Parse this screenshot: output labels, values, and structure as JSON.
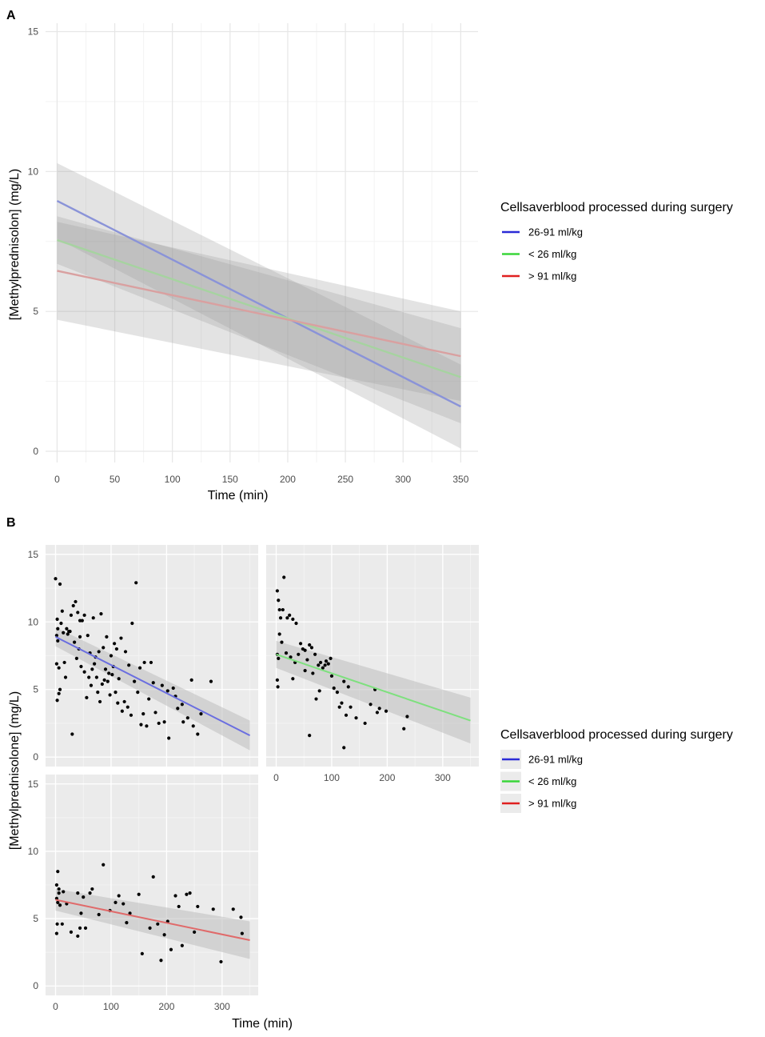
{
  "figure": {
    "panel_a_label": "A",
    "panel_b_label": "B"
  },
  "chart_data": [
    {
      "type": "line",
      "panel": "A",
      "title": "",
      "xlabel": "Time (min)",
      "ylabel": "[Methylprednisolon] (mg/L)",
      "xlim": [
        -10,
        365
      ],
      "ylim": [
        -0.4,
        15.3
      ],
      "xticks": [
        0,
        50,
        100,
        150,
        200,
        250,
        300,
        350
      ],
      "yticks": [
        0,
        5,
        10,
        15
      ],
      "legend_title": "Cellsaverblood processed during surgery",
      "legend_position": "right",
      "background": "white",
      "series": [
        {
          "name": "26-91 ml/kg",
          "color": "#8a93d8",
          "legend_color": "#2b2bd6",
          "x": [
            0,
            350
          ],
          "y": [
            8.95,
            1.6
          ],
          "ci_lower": [
            7.6,
            0.1
          ],
          "ci_upper": [
            10.3,
            3.1
          ]
        },
        {
          "name": "< 26 ml/kg",
          "color": "#a6d3a0",
          "legend_color": "#3ad63a",
          "x": [
            0,
            350
          ],
          "y": [
            7.55,
            2.65
          ],
          "ci_lower": [
            6.7,
            1.0
          ],
          "ci_upper": [
            8.4,
            4.4
          ]
        },
        {
          "name": "> 91 ml/kg",
          "color": "#d9a0a0",
          "legend_color": "#e02020",
          "x": [
            0,
            350
          ],
          "y": [
            6.45,
            3.4
          ],
          "ci_lower": [
            4.7,
            1.8
          ],
          "ci_upper": [
            8.2,
            5.0
          ]
        }
      ]
    },
    {
      "type": "scatter",
      "panel": "B",
      "title": "",
      "xlabel": "Time (min)",
      "ylabel": "[Methylprednisolone] (mg/L)",
      "xlim": [
        -18,
        365
      ],
      "ylim": [
        -0.7,
        15.7
      ],
      "xticks": [
        0,
        100,
        200,
        300
      ],
      "yticks": [
        0,
        5,
        10,
        15
      ],
      "legend_title": "Cellsaverblood processed during surgery",
      "legend_position": "right",
      "background": "grey",
      "facets": [
        {
          "name": "26-91 ml/kg",
          "line_color": "#6a6ee0",
          "fit": {
            "x": [
              0,
              350
            ],
            "y": [
              8.9,
              1.6
            ]
          },
          "ci_lower": [
            8.2,
            0.5
          ],
          "ci_upper": [
            9.6,
            2.7
          ],
          "points": [
            [
              0,
              13.2
            ],
            [
              8,
              12.8
            ],
            [
              3,
              10.2
            ],
            [
              12,
              10.8
            ],
            [
              20,
              9.5
            ],
            [
              28,
              10.5
            ],
            [
              32,
              11.2
            ],
            [
              36,
              11.5
            ],
            [
              40,
              10.7
            ],
            [
              44,
              10.1
            ],
            [
              48,
              10.1
            ],
            [
              52,
              10.5
            ],
            [
              58,
              9.0
            ],
            [
              62,
              7.7
            ],
            [
              68,
              10.3
            ],
            [
              78,
              7.8
            ],
            [
              82,
              10.6
            ],
            [
              86,
              8.1
            ],
            [
              92,
              8.9
            ],
            [
              100,
              7.5
            ],
            [
              106,
              8.4
            ],
            [
              110,
              8.0
            ],
            [
              118,
              8.8
            ],
            [
              126,
              7.8
            ],
            [
              132,
              6.8
            ],
            [
              138,
              9.9
            ],
            [
              145,
              12.9
            ],
            [
              152,
              6.6
            ],
            [
              160,
              7.0
            ],
            [
              176,
              5.5
            ],
            [
              192,
              5.3
            ],
            [
              202,
              4.9
            ],
            [
              216,
              4.5
            ],
            [
              230,
              2.6
            ],
            [
              245,
              5.7
            ],
            [
              280,
              5.6
            ],
            [
              2,
              9.0
            ],
            [
              4,
              8.6
            ],
            [
              6,
              6.6
            ],
            [
              2,
              6.9
            ],
            [
              3,
              4.2
            ],
            [
              6,
              4.7
            ],
            [
              14,
              9.2
            ],
            [
              18,
              5.9
            ],
            [
              22,
              9.1
            ],
            [
              26,
              9.3
            ],
            [
              34,
              8.5
            ],
            [
              42,
              8.0
            ],
            [
              46,
              6.7
            ],
            [
              52,
              6.3
            ],
            [
              56,
              4.4
            ],
            [
              60,
              5.9
            ],
            [
              64,
              5.3
            ],
            [
              70,
              6.9
            ],
            [
              74,
              5.9
            ],
            [
              80,
              4.1
            ],
            [
              84,
              5.4
            ],
            [
              90,
              6.5
            ],
            [
              94,
              5.6
            ],
            [
              96,
              6.2
            ],
            [
              102,
              6.1
            ],
            [
              108,
              4.8
            ],
            [
              112,
              4.0
            ],
            [
              114,
              5.8
            ],
            [
              120,
              3.4
            ],
            [
              124,
              4.1
            ],
            [
              130,
              3.7
            ],
            [
              136,
              3.1
            ],
            [
              142,
              5.6
            ],
            [
              148,
              4.8
            ],
            [
              154,
              2.4
            ],
            [
              158,
              3.2
            ],
            [
              164,
              2.3
            ],
            [
              168,
              4.3
            ],
            [
              172,
              7.0
            ],
            [
              180,
              3.3
            ],
            [
              186,
              2.5
            ],
            [
              196,
              2.6
            ],
            [
              204,
              1.4
            ],
            [
              212,
              5.1
            ],
            [
              220,
              3.6
            ],
            [
              228,
              3.9
            ],
            [
              238,
              2.9
            ],
            [
              248,
              2.3
            ],
            [
              256,
              1.7
            ],
            [
              262,
              3.2
            ],
            [
              30,
              1.7
            ],
            [
              8,
              5.0
            ],
            [
              16,
              7.0
            ],
            [
              24,
              9.3
            ],
            [
              10,
              9.9
            ],
            [
              4,
              9.5
            ],
            [
              44,
              8.9
            ],
            [
              38,
              7.3
            ],
            [
              66,
              6.5
            ],
            [
              72,
              7.4
            ],
            [
              76,
              4.8
            ],
            [
              88,
              5.7
            ],
            [
              98,
              4.6
            ],
            [
              104,
              6.7
            ]
          ]
        },
        {
          "name": "< 26 ml/kg",
          "line_color": "#7ee07e",
          "fit": {
            "x": [
              0,
              350
            ],
            "y": [
              7.6,
              2.7
            ]
          },
          "ci_lower": [
            6.6,
            1.0
          ],
          "ci_upper": [
            8.6,
            4.4
          ],
          "points": [
            [
              2,
              12.3
            ],
            [
              4,
              11.6
            ],
            [
              14,
              13.3
            ],
            [
              6,
              10.9
            ],
            [
              8,
              10.3
            ],
            [
              12,
              10.9
            ],
            [
              20,
              10.3
            ],
            [
              24,
              10.5
            ],
            [
              30,
              10.2
            ],
            [
              36,
              9.9
            ],
            [
              2,
              7.6
            ],
            [
              4,
              7.3
            ],
            [
              2,
              5.7
            ],
            [
              3,
              5.2
            ],
            [
              6,
              9.1
            ],
            [
              10,
              8.5
            ],
            [
              18,
              7.7
            ],
            [
              26,
              7.4
            ],
            [
              34,
              7.0
            ],
            [
              40,
              7.6
            ],
            [
              44,
              8.4
            ],
            [
              48,
              8.0
            ],
            [
              52,
              7.9
            ],
            [
              56,
              7.2
            ],
            [
              60,
              8.3
            ],
            [
              64,
              8.1
            ],
            [
              66,
              6.2
            ],
            [
              70,
              7.6
            ],
            [
              72,
              4.3
            ],
            [
              76,
              6.8
            ],
            [
              80,
              7.0
            ],
            [
              84,
              6.6
            ],
            [
              88,
              6.8
            ],
            [
              90,
              7.1
            ],
            [
              94,
              6.9
            ],
            [
              98,
              7.3
            ],
            [
              100,
              6.0
            ],
            [
              104,
              5.1
            ],
            [
              110,
              4.8
            ],
            [
              114,
              3.7
            ],
            [
              118,
              4.0
            ],
            [
              122,
              5.6
            ],
            [
              126,
              3.1
            ],
            [
              130,
              5.2
            ],
            [
              134,
              3.7
            ],
            [
              144,
              2.9
            ],
            [
              160,
              2.5
            ],
            [
              170,
              3.9
            ],
            [
              178,
              5.0
            ],
            [
              182,
              3.3
            ],
            [
              186,
              3.6
            ],
            [
              198,
              3.4
            ],
            [
              230,
              2.1
            ],
            [
              236,
              3.0
            ],
            [
              60,
              1.6
            ],
            [
              122,
              0.7
            ],
            [
              30,
              5.8
            ],
            [
              52,
              6.4
            ],
            [
              78,
              4.9
            ]
          ]
        },
        {
          "name": "> 91 ml/kg",
          "line_color": "#e06a6a",
          "fit": {
            "x": [
              0,
              350
            ],
            "y": [
              6.4,
              3.4
            ]
          },
          "ci_lower": [
            5.6,
            2.0
          ],
          "ci_upper": [
            7.2,
            4.8
          ],
          "points": [
            [
              2,
              7.5
            ],
            [
              4,
              8.5
            ],
            [
              6,
              7.2
            ],
            [
              2,
              6.5
            ],
            [
              4,
              6.2
            ],
            [
              6,
              6.9
            ],
            [
              8,
              6.0
            ],
            [
              14,
              7.0
            ],
            [
              3,
              4.6
            ],
            [
              2,
              3.9
            ],
            [
              12,
              4.6
            ],
            [
              20,
              6.1
            ],
            [
              28,
              4.0
            ],
            [
              40,
              6.9
            ],
            [
              44,
              4.3
            ],
            [
              46,
              5.4
            ],
            [
              50,
              6.6
            ],
            [
              54,
              4.3
            ],
            [
              62,
              6.9
            ],
            [
              66,
              7.2
            ],
            [
              78,
              5.3
            ],
            [
              86,
              9.0
            ],
            [
              98,
              5.6
            ],
            [
              108,
              6.2
            ],
            [
              114,
              6.7
            ],
            [
              122,
              6.1
            ],
            [
              128,
              4.7
            ],
            [
              134,
              5.4
            ],
            [
              150,
              6.8
            ],
            [
              156,
              2.4
            ],
            [
              170,
              4.3
            ],
            [
              176,
              8.1
            ],
            [
              184,
              4.6
            ],
            [
              190,
              1.9
            ],
            [
              196,
              3.8
            ],
            [
              202,
              4.8
            ],
            [
              208,
              2.7
            ],
            [
              216,
              6.7
            ],
            [
              222,
              5.9
            ],
            [
              228,
              3.0
            ],
            [
              236,
              6.8
            ],
            [
              242,
              6.9
            ],
            [
              250,
              4.0
            ],
            [
              256,
              5.9
            ],
            [
              284,
              5.7
            ],
            [
              298,
              1.8
            ],
            [
              320,
              5.7
            ],
            [
              334,
              5.1
            ],
            [
              336,
              3.9
            ],
            [
              40,
              3.7
            ]
          ]
        }
      ]
    }
  ]
}
